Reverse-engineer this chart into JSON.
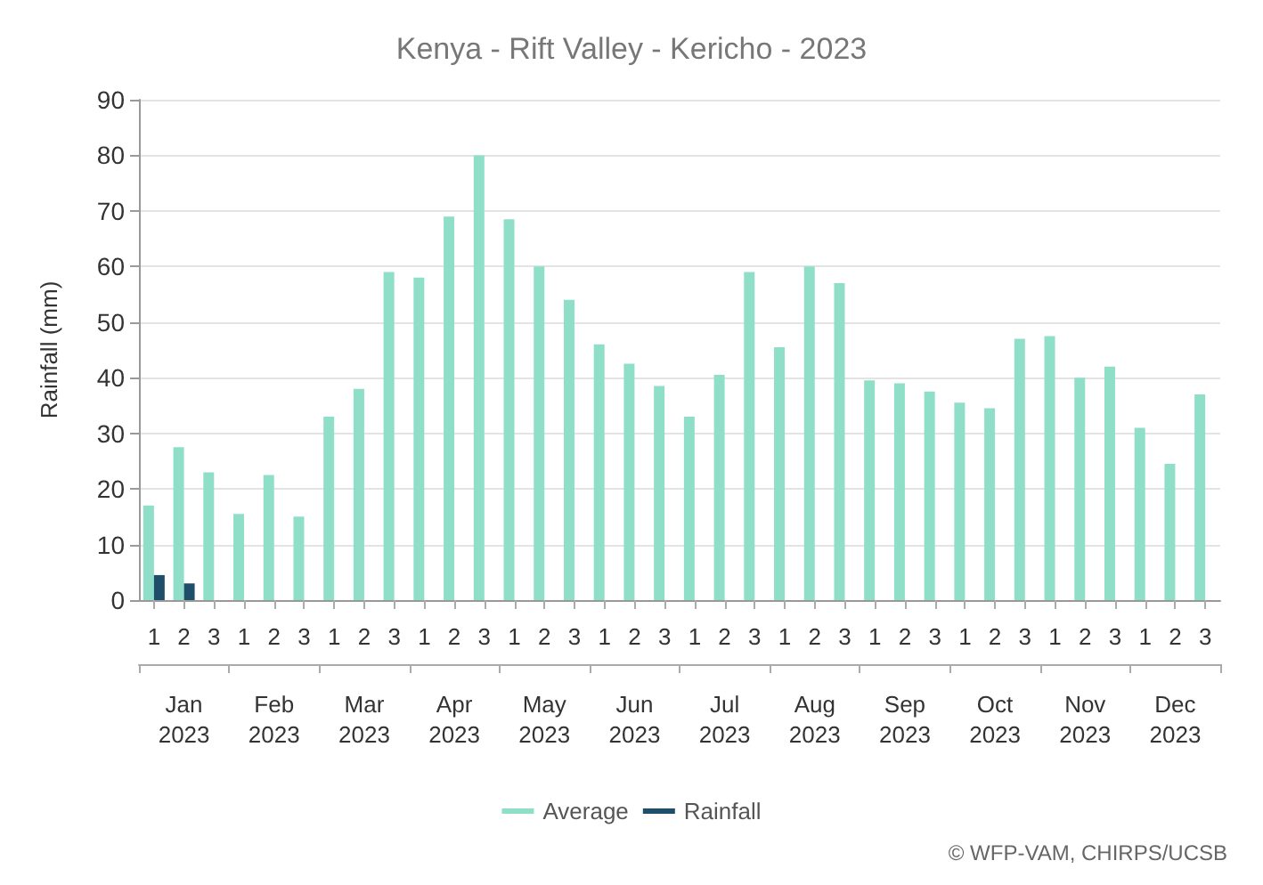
{
  "chart_data": {
    "type": "bar",
    "title": "Kenya - Rift Valley - Kericho - 2023",
    "ylabel": "Rainfall (mm)",
    "categories": [
      "1",
      "2",
      "3",
      "1",
      "2",
      "3",
      "1",
      "2",
      "3",
      "1",
      "2",
      "3",
      "1",
      "2",
      "3",
      "1",
      "2",
      "3",
      "1",
      "2",
      "3",
      "1",
      "2",
      "3",
      "1",
      "2",
      "3",
      "1",
      "2",
      "3",
      "1",
      "2",
      "3",
      "1",
      "2",
      "3"
    ],
    "series": [
      {
        "name": "Average",
        "color": "#8fdfc8",
        "values": [
          17,
          27.5,
          23,
          15.5,
          22.5,
          15,
          33,
          38,
          59,
          58,
          69,
          80,
          68.5,
          60,
          54,
          46,
          42.5,
          38.5,
          33,
          40.5,
          59,
          45.5,
          60,
          57,
          39.5,
          39,
          37.5,
          35.5,
          34.5,
          47,
          47.5,
          40,
          42,
          31,
          24.5,
          37
        ]
      },
      {
        "name": "Rainfall",
        "color": "#1f4e6b",
        "values": [
          4.5,
          3,
          null,
          null,
          null,
          null,
          null,
          null,
          null,
          null,
          null,
          null,
          null,
          null,
          null,
          null,
          null,
          null,
          null,
          null,
          null,
          null,
          null,
          null,
          null,
          null,
          null,
          null,
          null,
          null,
          null,
          null,
          null,
          null,
          null,
          null
        ]
      }
    ],
    "ylim": [
      0,
      90
    ],
    "yticks": [
      0,
      10,
      20,
      30,
      40,
      50,
      60,
      70,
      80,
      90
    ],
    "grid": "y",
    "legend": "bottom",
    "annotations": [
      "Jan 2023",
      "Feb 2023",
      "Mar 2023",
      "Apr 2023",
      "May 2023",
      "Jun 2023",
      "Jul 2023",
      "Aug 2023",
      "Sep 2023",
      "Oct 2023",
      "Nov 2023",
      "Dec 2023",
      "© WFP-VAM, CHIRPS/UCSB"
    ]
  }
}
